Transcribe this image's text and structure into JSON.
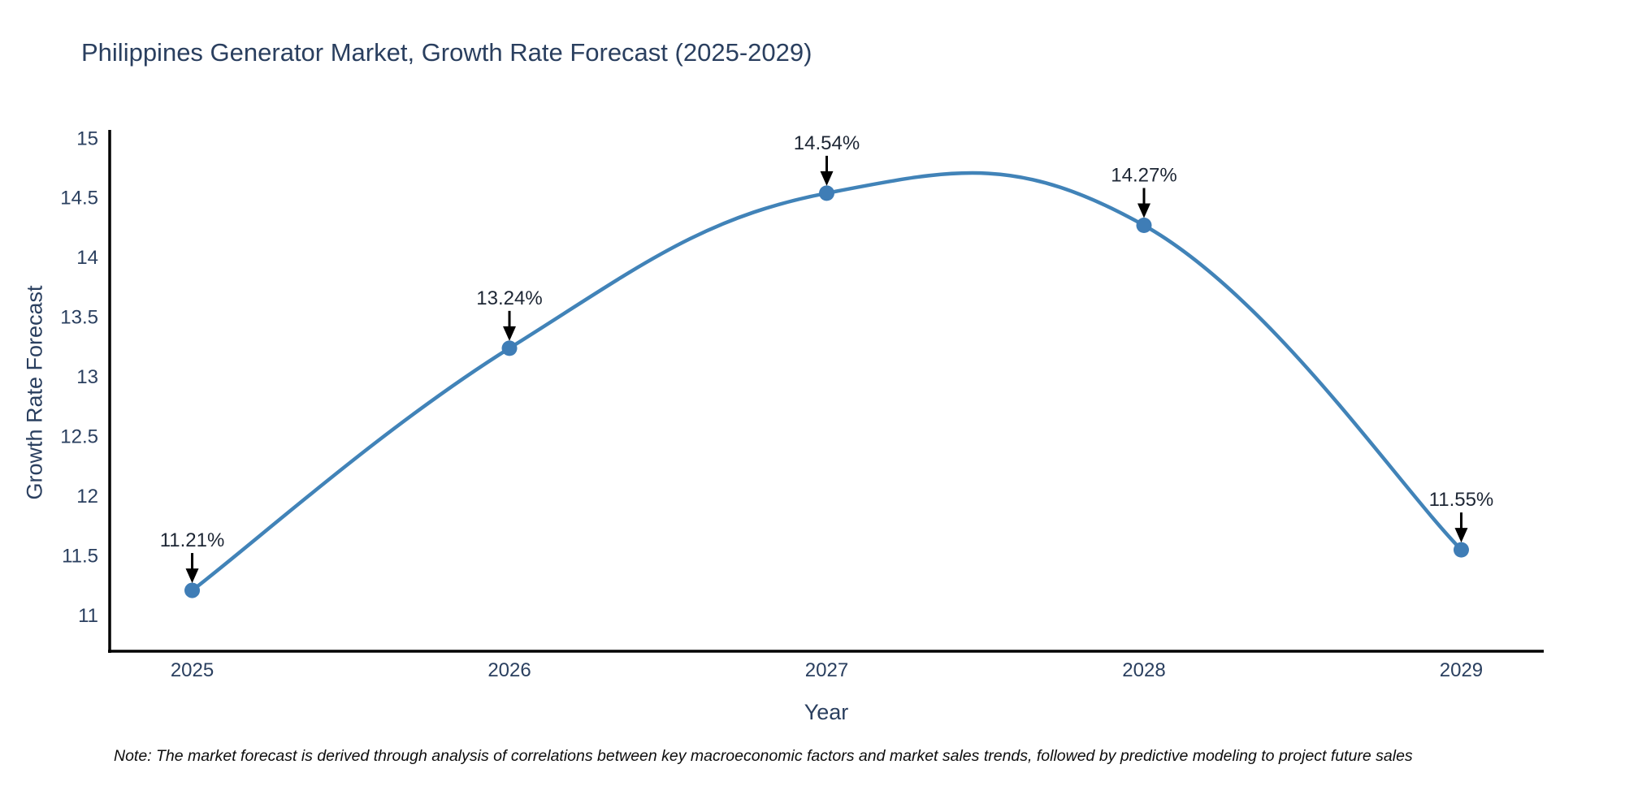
{
  "title": "Philippines Generator Market, Growth Rate Forecast (2025-2029)",
  "note": "Note: The market forecast is derived through analysis of correlations between key macroeconomic factors and market sales trends, followed by predictive modeling to project future sales",
  "chart_data": {
    "type": "line",
    "title": "Philippines Generator Market, Growth Rate Forecast (2025-2029)",
    "xlabel": "Year",
    "ylabel": "Growth Rate Forecast",
    "x": [
      2025,
      2026,
      2027,
      2028,
      2029
    ],
    "series": [
      {
        "name": "Growth Rate Forecast",
        "values": [
          11.21,
          13.24,
          14.54,
          14.27,
          11.55
        ],
        "point_labels": [
          "11.21%",
          "13.24%",
          "14.54%",
          "14.27%",
          "11.55%"
        ]
      }
    ],
    "line_shape": "spline",
    "markers": true,
    "grid": false,
    "legend_position": "none",
    "x_tick_labels": [
      "2025",
      "2026",
      "2027",
      "2028",
      "2029"
    ],
    "y_ticks": [
      11,
      11.5,
      12,
      12.5,
      13,
      13.5,
      14,
      14.5,
      15
    ],
    "xlim": [
      2024.74,
      2029.26
    ],
    "ylim": [
      10.7,
      15.07
    ],
    "colors": {
      "line": "#4183b8",
      "marker": "#3f7db6",
      "axis_line": "#000000",
      "tick_text": "#2a3f5f",
      "annotation_text": "#1d2634",
      "annotation_arrow": "#000000",
      "background": "#ffffff"
    }
  }
}
